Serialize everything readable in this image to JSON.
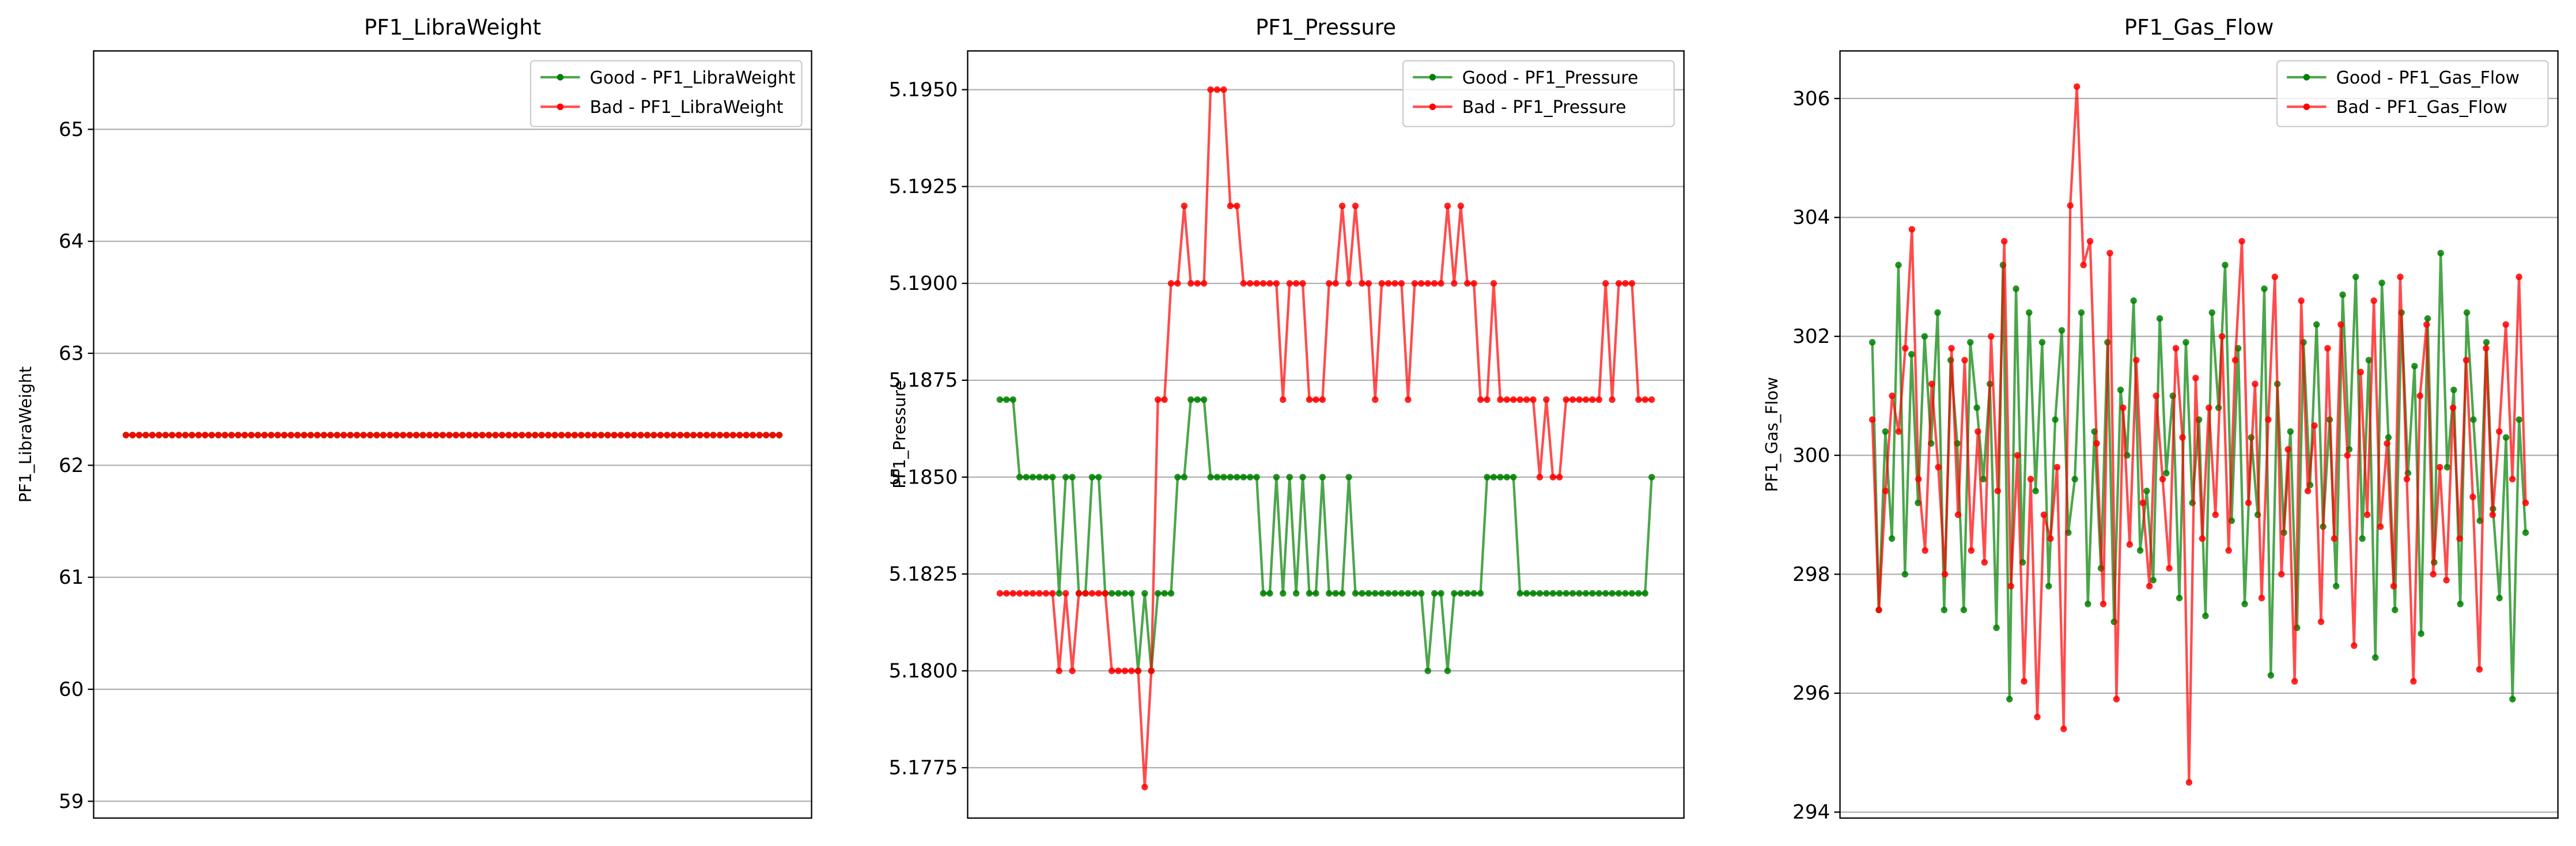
{
  "chart_data": [
    {
      "type": "line",
      "title": "PF1_LibraWeight",
      "ylabel": "PF1_LibraWeight",
      "grid": "y",
      "legend": "upper right",
      "ylim": [
        58.85,
        65.7
      ],
      "yticks": [
        59,
        60,
        61,
        62,
        63,
        64,
        65
      ],
      "series": [
        {
          "name": "Good - PF1_LibraWeight",
          "color": "green",
          "values": [
            62.27,
            62.27,
            62.27,
            62.27,
            62.27,
            62.27,
            62.27,
            62.27,
            62.27,
            62.27,
            62.27,
            62.27,
            62.27,
            62.27,
            62.27,
            62.27,
            62.27,
            62.27,
            62.27,
            62.27,
            62.27,
            62.27,
            62.27,
            62.27,
            62.27,
            62.27,
            62.27,
            62.27,
            62.27,
            62.27,
            62.27,
            62.27,
            62.27,
            62.27,
            62.27,
            62.27,
            62.27,
            62.27,
            62.27,
            62.27,
            62.27,
            62.27,
            62.27,
            62.27,
            62.27,
            62.27,
            62.27,
            62.27,
            62.27,
            62.27,
            62.27,
            62.27,
            62.27,
            62.27,
            62.27,
            62.27,
            62.27,
            62.27,
            62.27,
            62.27,
            62.27,
            62.27,
            62.27,
            62.27,
            62.27,
            62.27,
            62.27,
            62.27,
            62.27,
            62.27,
            62.27,
            62.27,
            62.27,
            62.27,
            62.27,
            62.27,
            62.27,
            62.27,
            62.27,
            62.27,
            62.27,
            62.27,
            62.27,
            62.27,
            62.27,
            62.27,
            62.27,
            62.27,
            62.27,
            62.27,
            62.27,
            62.27,
            62.27,
            62.27,
            62.27,
            62.27,
            62.27,
            62.27,
            62.27,
            62.27
          ]
        },
        {
          "name": "Bad - PF1_LibraWeight",
          "color": "red",
          "values": [
            62.27,
            62.27,
            62.27,
            62.27,
            62.27,
            62.27,
            62.27,
            62.27,
            62.27,
            62.27,
            62.27,
            62.27,
            62.27,
            62.27,
            62.27,
            62.27,
            62.27,
            62.27,
            62.27,
            62.27,
            62.27,
            62.27,
            62.27,
            62.27,
            62.27,
            62.27,
            62.27,
            62.27,
            62.27,
            62.27,
            62.27,
            62.27,
            62.27,
            62.27,
            62.27,
            62.27,
            62.27,
            62.27,
            62.27,
            62.27,
            62.27,
            62.27,
            62.27,
            62.27,
            62.27,
            62.27,
            62.27,
            62.27,
            62.27,
            62.27,
            62.27,
            62.27,
            62.27,
            62.27,
            62.27,
            62.27,
            62.27,
            62.27,
            62.27,
            62.27,
            62.27,
            62.27,
            62.27,
            62.27,
            62.27,
            62.27,
            62.27,
            62.27,
            62.27,
            62.27,
            62.27,
            62.27,
            62.27,
            62.27,
            62.27,
            62.27,
            62.27,
            62.27,
            62.27,
            62.27,
            62.27,
            62.27,
            62.27,
            62.27,
            62.27,
            62.27,
            62.27,
            62.27,
            62.27,
            62.27,
            62.27,
            62.27,
            62.27,
            62.27,
            62.27,
            62.27,
            62.27,
            62.27,
            62.27,
            62.27
          ]
        }
      ]
    },
    {
      "type": "line",
      "title": "PF1_Pressure",
      "ylabel": "PF1_Pressure",
      "grid": "y",
      "legend": "upper right",
      "ylim": [
        5.1762,
        5.196
      ],
      "yticks": [
        5.1775,
        {
          "value": 5.18,
          "label": "5.1800"
        },
        5.1825,
        {
          "value": 5.185,
          "label": "5.1850"
        },
        5.1875,
        {
          "value": 5.19,
          "label": "5.1900"
        },
        5.1925,
        {
          "value": 5.195,
          "label": "5.1950"
        }
      ],
      "series": [
        {
          "name": "Good - PF1_Pressure",
          "color": "green",
          "values": [
            5.187,
            5.187,
            5.187,
            5.185,
            5.185,
            5.185,
            5.185,
            5.185,
            5.185,
            5.182,
            5.185,
            5.185,
            5.182,
            5.182,
            5.185,
            5.185,
            5.182,
            5.182,
            5.182,
            5.182,
            5.182,
            5.18,
            5.182,
            5.18,
            5.182,
            5.182,
            5.182,
            5.185,
            5.185,
            5.187,
            5.187,
            5.187,
            5.185,
            5.185,
            5.185,
            5.185,
            5.185,
            5.185,
            5.185,
            5.185,
            5.182,
            5.182,
            5.185,
            5.182,
            5.185,
            5.182,
            5.185,
            5.182,
            5.182,
            5.185,
            5.182,
            5.182,
            5.182,
            5.185,
            5.182,
            5.182,
            5.182,
            5.182,
            5.182,
            5.182,
            5.182,
            5.182,
            5.182,
            5.182,
            5.182,
            5.18,
            5.182,
            5.182,
            5.18,
            5.182,
            5.182,
            5.182,
            5.182,
            5.182,
            5.185,
            5.185,
            5.185,
            5.185,
            5.185,
            5.182,
            5.182,
            5.182,
            5.182,
            5.182,
            5.182,
            5.182,
            5.182,
            5.182,
            5.182,
            5.182,
            5.182,
            5.182,
            5.182,
            5.182,
            5.182,
            5.182,
            5.182,
            5.182,
            5.182,
            5.185
          ]
        },
        {
          "name": "Bad - PF1_Pressure",
          "color": "red",
          "values": [
            5.182,
            5.182,
            5.182,
            5.182,
            5.182,
            5.182,
            5.182,
            5.182,
            5.182,
            5.18,
            5.182,
            5.18,
            5.182,
            5.182,
            5.182,
            5.182,
            5.182,
            5.18,
            5.18,
            5.18,
            5.18,
            5.18,
            5.177,
            5.18,
            5.187,
            5.187,
            5.19,
            5.19,
            5.192,
            5.19,
            5.19,
            5.19,
            5.195,
            5.195,
            5.195,
            5.192,
            5.192,
            5.19,
            5.19,
            5.19,
            5.19,
            5.19,
            5.19,
            5.187,
            5.19,
            5.19,
            5.19,
            5.187,
            5.187,
            5.187,
            5.19,
            5.19,
            5.192,
            5.19,
            5.192,
            5.19,
            5.19,
            5.187,
            5.19,
            5.19,
            5.19,
            5.19,
            5.187,
            5.19,
            5.19,
            5.19,
            5.19,
            5.19,
            5.192,
            5.19,
            5.192,
            5.19,
            5.19,
            5.187,
            5.187,
            5.19,
            5.187,
            5.187,
            5.187,
            5.187,
            5.187,
            5.187,
            5.185,
            5.187,
            5.185,
            5.185,
            5.187,
            5.187,
            5.187,
            5.187,
            5.187,
            5.187,
            5.19,
            5.187,
            5.19,
            5.19,
            5.19,
            5.187,
            5.187,
            5.187
          ]
        }
      ]
    },
    {
      "type": "line",
      "title": "PF1_Gas_Flow",
      "ylabel": "PF1_Gas_Flow",
      "grid": "y",
      "legend": "upper right",
      "ylim": [
        293.9,
        306.8
      ],
      "yticks": [
        294,
        296,
        298,
        300,
        302,
        304,
        306
      ],
      "series": [
        {
          "name": "Good - PF1_Gas_Flow",
          "color": "green",
          "values": [
            301.9,
            297.4,
            300.4,
            298.6,
            303.2,
            298.0,
            301.7,
            299.2,
            302.0,
            300.2,
            302.4,
            297.4,
            301.6,
            300.2,
            297.4,
            301.9,
            300.8,
            299.6,
            301.2,
            297.1,
            303.2,
            295.9,
            302.8,
            298.2,
            302.4,
            299.4,
            301.9,
            297.8,
            300.6,
            302.1,
            298.7,
            299.6,
            302.4,
            297.5,
            300.4,
            298.1,
            301.9,
            297.2,
            301.1,
            300.0,
            302.6,
            298.4,
            299.4,
            297.9,
            302.3,
            299.7,
            301.0,
            297.6,
            301.9,
            299.2,
            300.6,
            297.3,
            302.4,
            300.8,
            303.2,
            298.9,
            301.8,
            297.5,
            300.3,
            299.0,
            302.8,
            296.3,
            301.2,
            298.7,
            300.4,
            297.1,
            301.9,
            299.5,
            302.2,
            298.8,
            300.6,
            297.8,
            302.7,
            300.1,
            303.0,
            298.6,
            301.6,
            296.6,
            302.9,
            300.3,
            297.4,
            302.4,
            299.7,
            301.5,
            297.0,
            302.3,
            298.2,
            303.4,
            299.8,
            301.1,
            297.5,
            302.4,
            300.6,
            298.9,
            301.9,
            299.1,
            297.6,
            300.3,
            295.9,
            300.6,
            298.7
          ]
        },
        {
          "name": "Bad - PF1_Gas_Flow",
          "color": "red",
          "values": [
            300.6,
            297.4,
            299.4,
            301.0,
            300.4,
            301.8,
            303.8,
            299.6,
            298.4,
            301.2,
            299.8,
            298.0,
            301.8,
            299.0,
            301.6,
            298.4,
            300.4,
            298.2,
            302.0,
            299.4,
            303.6,
            297.8,
            300.0,
            296.2,
            299.6,
            295.6,
            299.0,
            298.6,
            299.8,
            295.4,
            304.2,
            306.2,
            303.2,
            303.6,
            300.2,
            297.5,
            303.4,
            295.9,
            300.8,
            298.5,
            301.6,
            299.2,
            297.8,
            301.0,
            299.6,
            298.1,
            301.8,
            300.3,
            294.5,
            301.3,
            298.6,
            300.8,
            299.0,
            302.0,
            298.4,
            301.6,
            303.6,
            299.2,
            301.2,
            297.6,
            300.6,
            303.0,
            298.0,
            300.1,
            296.2,
            302.6,
            299.4,
            300.5,
            297.2,
            301.8,
            298.6,
            302.2,
            300.0,
            296.8,
            301.4,
            299.0,
            302.6,
            298.8,
            300.2,
            297.8,
            303.0,
            299.6,
            296.2,
            301.0,
            302.2,
            298.0,
            299.8,
            297.9,
            300.8,
            298.6,
            301.6,
            299.3,
            296.4,
            301.8,
            299.0,
            300.4,
            302.2,
            299.6,
            303.0,
            299.2
          ]
        }
      ]
    }
  ]
}
